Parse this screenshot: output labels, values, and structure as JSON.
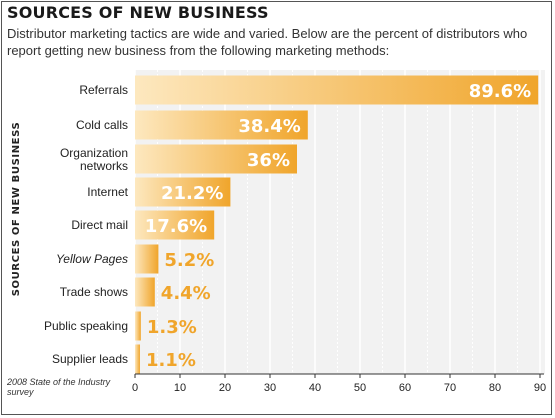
{
  "title": "SOURCES OF NEW BUSINESS",
  "subtitle": "Distributor marketing tactics are wide and varied. Below are the percent of distributors who report getting new business from the following marketing methods:",
  "source_note": "2008 State of the Industry survey",
  "colors": {
    "bar_light": "#fde8bf",
    "bar_dark": "#f0a52b",
    "value_text_on_bar": "#ffffff",
    "value_text_outside": "#f0a52b",
    "panel_bg": "#f2f2f2",
    "grid": "#ffffff"
  },
  "chart_data": {
    "type": "bar",
    "orientation": "horizontal",
    "title": "SOURCES OF NEW BUSINESS",
    "ylabel": "SOURCES OF NEW BUSINESS",
    "xlabel": "",
    "xlim": [
      0,
      90
    ],
    "xticks": [
      0,
      10,
      20,
      30,
      40,
      50,
      60,
      70,
      80,
      90
    ],
    "grid": true,
    "categories": [
      "Referrals",
      "Cold calls",
      "Organization networks",
      "Internet",
      "Direct mail",
      "Yellow Pages",
      "Trade shows",
      "Public speaking",
      "Supplier leads"
    ],
    "values": [
      89.6,
      38.4,
      36,
      21.2,
      17.6,
      5.2,
      4.4,
      1.3,
      1.1
    ],
    "value_labels": [
      "89.6%",
      "38.4%",
      "36%",
      "21.2%",
      "17.6%",
      "5.2%",
      "4.4%",
      "1.3%",
      "1.1%"
    ],
    "italic_categories": [
      "Yellow Pages"
    ]
  }
}
